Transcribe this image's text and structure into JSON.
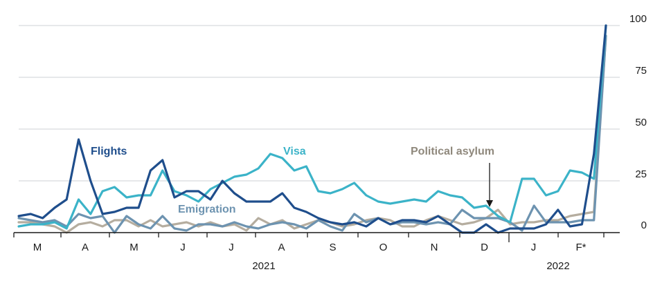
{
  "chart_data": {
    "type": "line",
    "title": "",
    "xlabel": "",
    "ylabel": "",
    "ylim": [
      0,
      100
    ],
    "yticks": [
      0,
      25,
      50,
      75,
      100
    ],
    "month_labels": [
      "M",
      "A",
      "M",
      "J",
      "J",
      "A",
      "S",
      "O",
      "N",
      "D",
      "J",
      "F*"
    ],
    "year_labels": [
      "2021",
      "2022"
    ],
    "x": [
      0,
      1,
      2,
      3,
      4,
      5,
      6,
      7,
      8,
      9,
      10,
      11,
      12,
      13,
      14,
      15,
      16,
      17,
      18,
      19,
      20,
      21,
      22,
      23,
      24,
      25,
      26,
      27,
      28,
      29,
      30,
      31,
      32,
      33,
      34,
      35,
      36,
      37,
      38,
      39,
      40,
      41,
      42,
      43,
      44,
      45,
      46,
      47,
      48,
      49
    ],
    "series": [
      {
        "name": "Flights",
        "color": "#1f4e8c",
        "values": [
          8,
          9,
          7,
          12,
          16,
          45,
          25,
          9,
          10,
          12,
          12,
          30,
          35,
          17,
          20,
          20,
          16,
          25,
          19,
          15,
          15,
          15,
          19,
          12,
          10,
          7,
          5,
          4,
          5,
          3,
          7,
          4,
          6,
          6,
          5,
          8,
          4,
          0,
          0,
          4,
          0,
          2,
          2,
          2,
          4,
          11,
          3,
          4,
          38,
          100
        ]
      },
      {
        "name": "Visa",
        "color": "#3bb3c8",
        "values": [
          3,
          4,
          4,
          5,
          2,
          16,
          9,
          20,
          22,
          17,
          18,
          18,
          30,
          20,
          18,
          15,
          21,
          24,
          27,
          28,
          31,
          38,
          36,
          30,
          32,
          20,
          19,
          21,
          24,
          18,
          15,
          14,
          15,
          16,
          15,
          20,
          18,
          17,
          12,
          13,
          8,
          5,
          26,
          26,
          18,
          20,
          30,
          29,
          26,
          100
        ]
      },
      {
        "name": "Emigration",
        "color": "#6d93b0",
        "values": [
          7,
          6,
          5,
          6,
          3,
          9,
          7,
          8,
          0,
          8,
          4,
          2,
          8,
          2,
          1,
          4,
          4,
          3,
          5,
          3,
          2,
          4,
          5,
          4,
          2,
          6,
          3,
          1,
          9,
          5,
          7,
          4,
          5,
          5,
          4,
          5,
          4,
          11,
          7,
          7,
          7,
          5,
          1,
          13,
          5,
          5,
          5,
          6,
          6,
          95
        ]
      },
      {
        "name": "Political asylum",
        "color": "#b5ad9f",
        "values": [
          5,
          5,
          4,
          3,
          0,
          4,
          5,
          3,
          6,
          6,
          3,
          6,
          3,
          4,
          5,
          3,
          5,
          3,
          4,
          1,
          7,
          4,
          6,
          2,
          4,
          6,
          5,
          3,
          4,
          6,
          7,
          6,
          3,
          3,
          6,
          8,
          6,
          4,
          5,
          7,
          11,
          4,
          5,
          5,
          6,
          6,
          8,
          9,
          10,
          95
        ]
      }
    ],
    "annotations": {
      "flights_label": "Flights",
      "visa_label": "Visa",
      "emigration_label": "Emigration",
      "asylum_label": "Political asylum"
    },
    "grid": true,
    "axis_position": "right"
  }
}
